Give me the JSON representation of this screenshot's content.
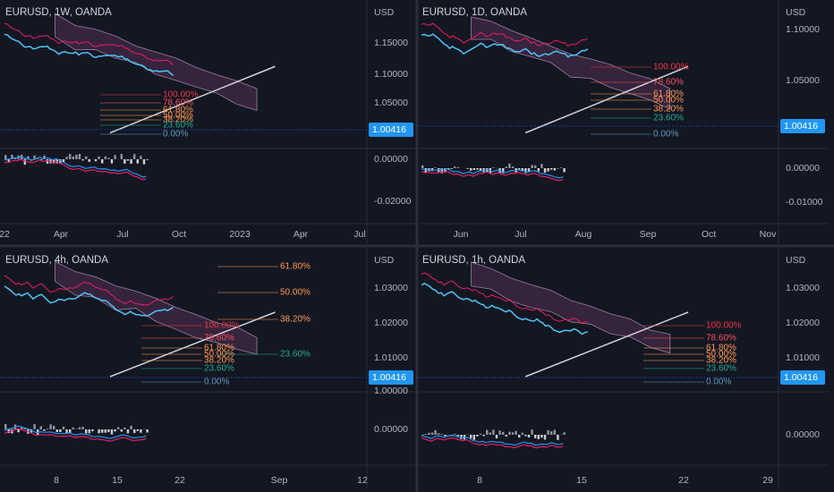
{
  "panels": [
    {
      "title": "EURUSD, 1W, OANDA",
      "currency": "USD",
      "price_ticks": [
        "1.15000",
        "1.10000",
        "1.05000"
      ],
      "price_tag": "1.00416",
      "macd_ticks": [
        "0.00000",
        "-0.02000"
      ],
      "time_labels": [
        "22",
        "Apr",
        "Jul",
        "Oct",
        "2023",
        "Apr",
        "Jul"
      ],
      "fib_labels": [
        "100.00%",
        "78.60%",
        "61.80%",
        "50.00%",
        "38.20%",
        "23.60%",
        "0.00%"
      ]
    },
    {
      "title": "EURUSD, 1D, OANDA",
      "currency": "USD",
      "price_ticks": [
        "1.10000",
        "1.05000"
      ],
      "price_tag": "1.00416",
      "macd_ticks": [
        "0.00000",
        "-0.01000"
      ],
      "time_labels": [
        "Jun",
        "Jul",
        "Aug",
        "Sep",
        "Oct",
        "Nov"
      ],
      "fib_labels": [
        "100.00%",
        "78.60%",
        "61.80%",
        "50.00%",
        "38.20%",
        "23.60%",
        "0.00%"
      ]
    },
    {
      "title": "EURUSD, 4h, OANDA",
      "currency": "USD",
      "price_ticks": [
        "1.03000",
        "1.02000",
        "1.01000",
        "1.00000"
      ],
      "price_tag": "1.00416",
      "macd_ticks": [
        "0.00000"
      ],
      "time_labels": [
        "8",
        "15",
        "22",
        "Sep",
        "12"
      ],
      "fib_labels": [
        "61.80%",
        "50.00%",
        "38.20%",
        "100.00%",
        "78.60%",
        "61.80%",
        "50.00%",
        "38.20%",
        "23.60%",
        "23.60%",
        "0.00%"
      ]
    },
    {
      "title": "EURUSD, 1h, OANDA",
      "currency": "USD",
      "price_ticks": [
        "1.03000",
        "1.02000",
        "1.01000"
      ],
      "price_tag": "1.00416",
      "macd_ticks": [
        "0.00000"
      ],
      "time_labels": [
        "8",
        "15",
        "22",
        "29"
      ],
      "fib_labels": [
        "100.00%",
        "78.60%",
        "61.80%",
        "50.00%",
        "38.20%",
        "23.60%",
        "0.00%"
      ]
    }
  ]
}
